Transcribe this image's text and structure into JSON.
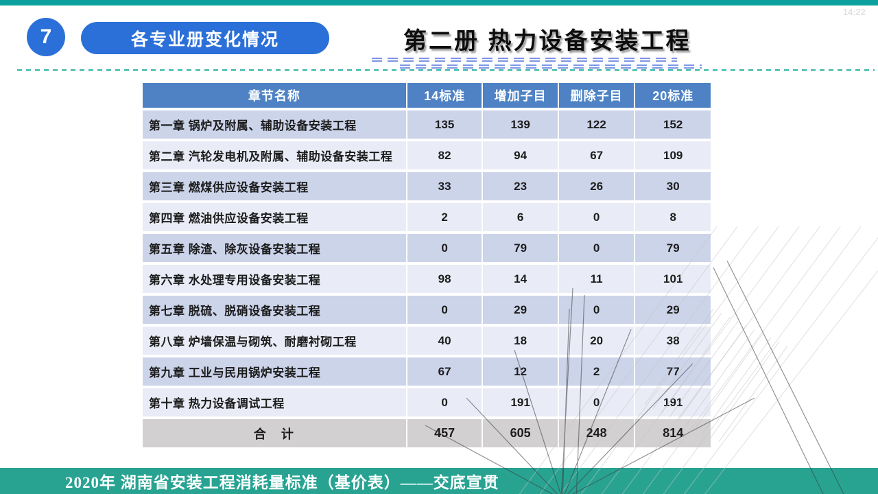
{
  "page": {
    "timestamp": "14:22"
  },
  "header": {
    "slide_number": "7",
    "section_label": "各专业册变化情况",
    "title": "第二册 热力设备安装工程"
  },
  "table": {
    "columns": [
      "章节名称",
      "14标准",
      "增加子目",
      "删除子目",
      "20标准"
    ],
    "rows": [
      {
        "name": "第一章 锅炉及附属、辅助设备安装工程",
        "values": [
          "135",
          "139",
          "122",
          "152"
        ]
      },
      {
        "name": "第二章 汽轮发电机及附属、辅助设备安装工程",
        "values": [
          "82",
          "94",
          "67",
          "109"
        ]
      },
      {
        "name": "第三章 燃煤供应设备安装工程",
        "values": [
          "33",
          "23",
          "26",
          "30"
        ]
      },
      {
        "name": "第四章 燃油供应设备安装工程",
        "values": [
          "2",
          "6",
          "0",
          "8"
        ]
      },
      {
        "name": "第五章 除渣、除灰设备安装工程",
        "values": [
          "0",
          "79",
          "0",
          "79"
        ]
      },
      {
        "name": "第六章 水处理专用设备安装工程",
        "values": [
          "98",
          "14",
          "11",
          "101"
        ]
      },
      {
        "name": "第七章 脱硫、脱硝设备安装工程",
        "values": [
          "0",
          "29",
          "0",
          "29"
        ]
      },
      {
        "name": "第八章 炉墙保温与砌筑、耐磨衬砌工程",
        "values": [
          "40",
          "18",
          "20",
          "38"
        ]
      },
      {
        "name": "第九章 工业与民用锅炉安装工程",
        "values": [
          "67",
          "12",
          "2",
          "77"
        ]
      },
      {
        "name": "第十章 热力设备调试工程",
        "values": [
          "0",
          "191",
          "0",
          "191"
        ]
      }
    ],
    "total": {
      "label": "合　计",
      "values": [
        "457",
        "605",
        "248",
        "814"
      ]
    }
  },
  "footer": {
    "text": "2020年 湖南省安装工程消耗量标准（基价表）——交底宣贯"
  },
  "colors": {
    "accent_blue": "#2b70d8",
    "header_blue": "#4e82c4",
    "row_odd": "#ccd4ea",
    "row_even": "#e9ecf6",
    "total_gray": "#d2d0d0",
    "teal_top": "#0ca19c",
    "teal_footer": "#28a392",
    "dash_blue": "#7c95e6",
    "dash_teal": "#2eb3a4"
  }
}
